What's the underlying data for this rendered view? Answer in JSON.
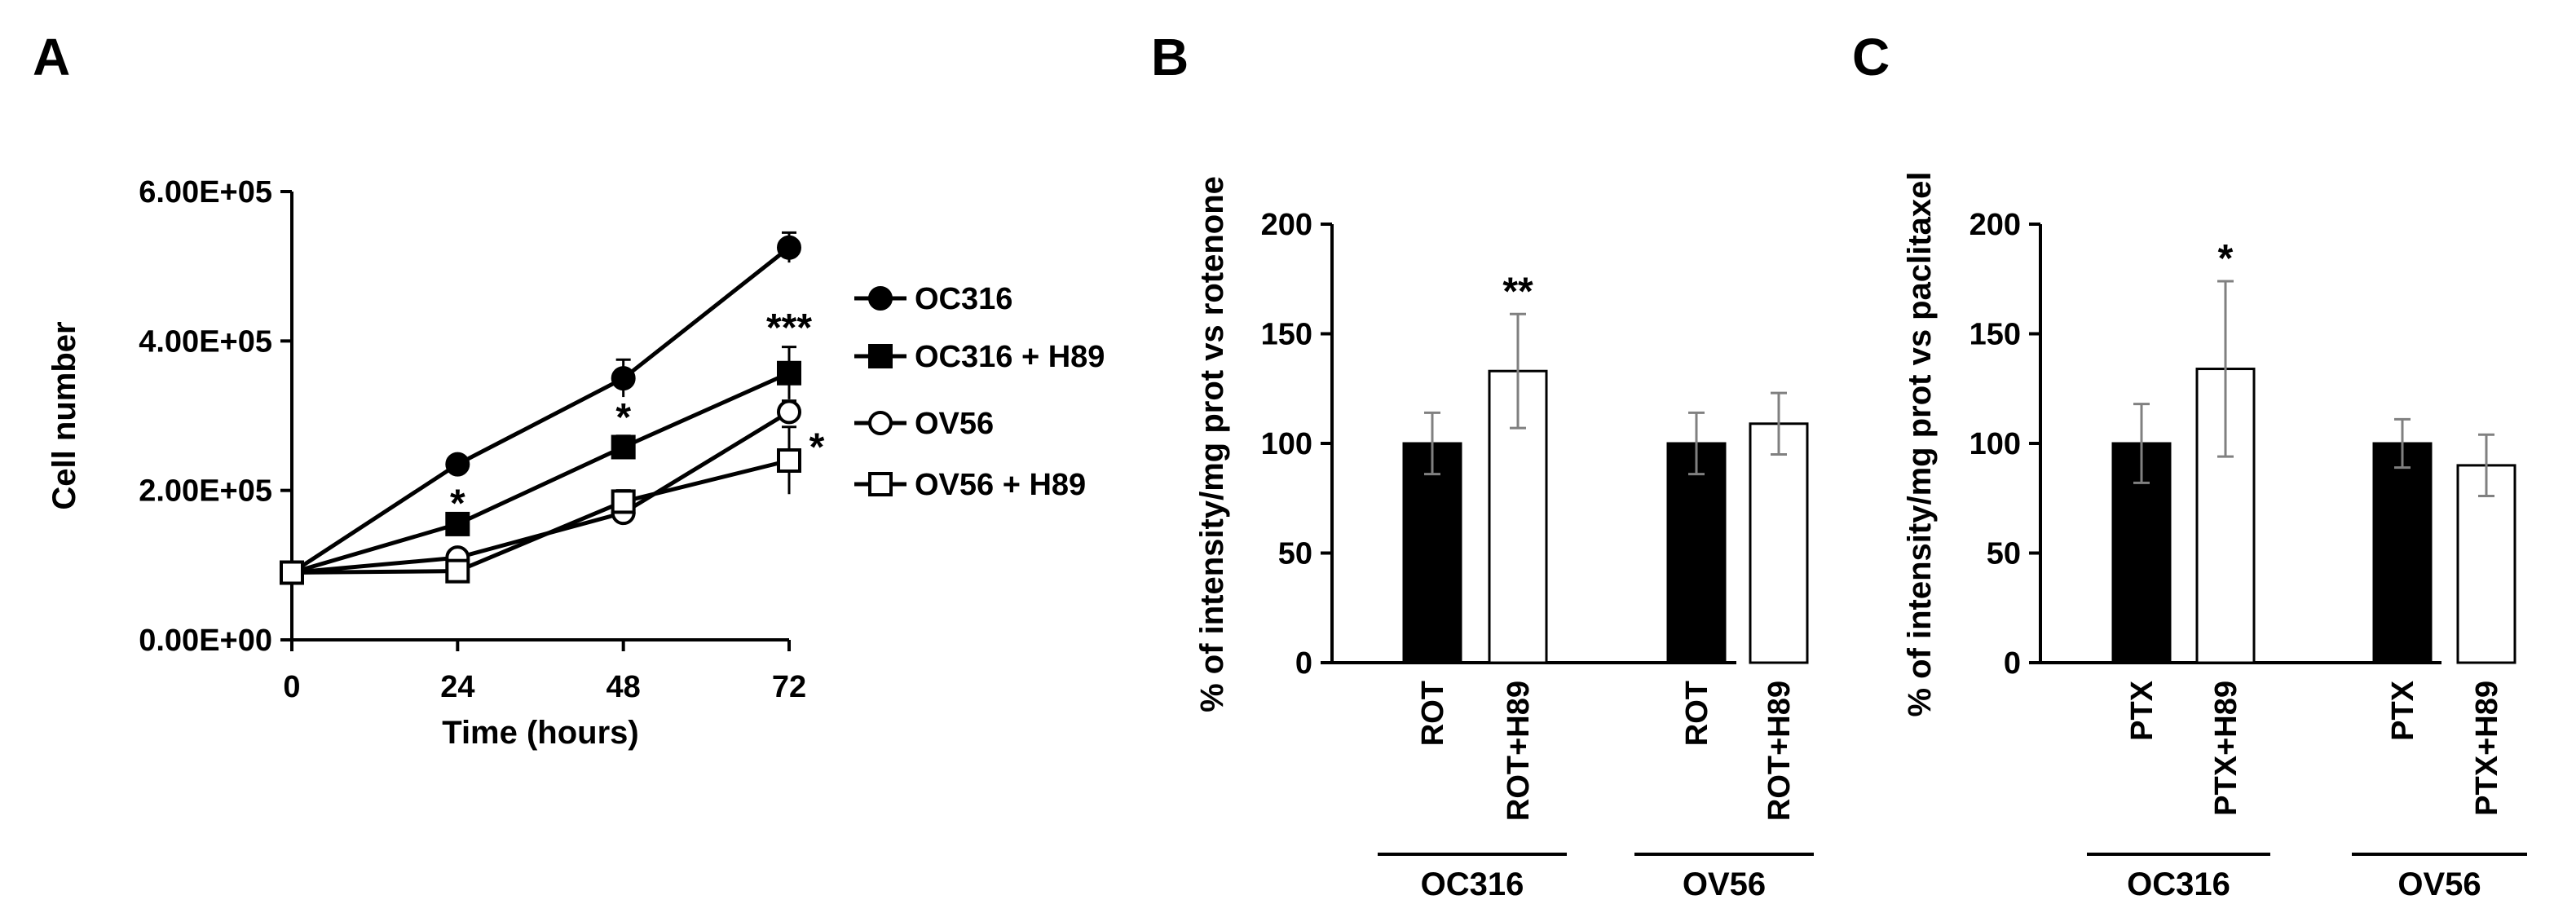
{
  "panels": {
    "A": "A",
    "B": "B",
    "C": "C"
  },
  "chart_data": [
    {
      "type": "line",
      "panel": "A",
      "xlabel": "Time (hours)",
      "ylabel": "Cell number",
      "x": [
        0,
        24,
        48,
        72
      ],
      "xticks": [
        "0",
        "24",
        "48",
        "72"
      ],
      "yticks": [
        "0.00E+00",
        "2.00E+05",
        "4.00E+05",
        "6.00E+05"
      ],
      "xlim": [
        0,
        72
      ],
      "ylim": [
        0,
        600000
      ],
      "legend_position": "right",
      "series": [
        {
          "name": "OC316",
          "marker": "filled-circle",
          "values": [
            90000,
            235000,
            350000,
            525000
          ],
          "errors": [
            5000,
            8000,
            25000,
            20000
          ]
        },
        {
          "name": "OC316 + H89",
          "marker": "filled-square",
          "values": [
            90000,
            155000,
            258000,
            357000
          ],
          "errors": [
            5000,
            6000,
            15000,
            35000
          ]
        },
        {
          "name": "OV56",
          "marker": "open-circle",
          "values": [
            90000,
            110000,
            170000,
            305000
          ],
          "errors": [
            5000,
            5000,
            10000,
            15000
          ]
        },
        {
          "name": "OV56 + H89",
          "marker": "open-square",
          "values": [
            90000,
            92000,
            185000,
            240000
          ],
          "errors": [
            5000,
            5000,
            15000,
            45000
          ]
        }
      ],
      "annotations": [
        {
          "text": "*",
          "x": 24,
          "y": 185000
        },
        {
          "text": "*",
          "x": 48,
          "y": 300000
        },
        {
          "text": "***",
          "x": 72,
          "y": 420000
        },
        {
          "text": "*",
          "x": 72,
          "y": 260000
        }
      ]
    },
    {
      "type": "bar",
      "panel": "B",
      "ylabel": "% of intensity/mg prot vs rotenone",
      "ylim": [
        0,
        200
      ],
      "yticks": [
        "0",
        "50",
        "100",
        "150",
        "200"
      ],
      "groups": [
        {
          "label": "OC316",
          "bars": [
            {
              "label": "ROT",
              "value": 100,
              "error": 14,
              "fill": "black"
            },
            {
              "label": "ROT+H89",
              "value": 133,
              "error": 26,
              "fill": "white",
              "sig": "**"
            }
          ]
        },
        {
          "label": "OV56",
          "bars": [
            {
              "label": "ROT",
              "value": 100,
              "error": 14,
              "fill": "black"
            },
            {
              "label": "ROT+H89",
              "value": 109,
              "error": 14,
              "fill": "white",
              "sig": ""
            }
          ]
        }
      ]
    },
    {
      "type": "bar",
      "panel": "C",
      "ylabel": "% of intensity/mg prot vs paclitaxel",
      "ylim": [
        0,
        200
      ],
      "yticks": [
        "0",
        "50",
        "100",
        "150",
        "200"
      ],
      "groups": [
        {
          "label": "OC316",
          "bars": [
            {
              "label": "PTX",
              "value": 100,
              "error": 18,
              "fill": "black"
            },
            {
              "label": "PTX+H89",
              "value": 134,
              "error": 40,
              "fill": "white",
              "sig": "*"
            }
          ]
        },
        {
          "label": "OV56",
          "bars": [
            {
              "label": "PTX",
              "value": 100,
              "error": 11,
              "fill": "black"
            },
            {
              "label": "PTX+H89",
              "value": 90,
              "error": 14,
              "fill": "white",
              "sig": ""
            }
          ]
        }
      ]
    }
  ],
  "colors": {
    "ink": "#000000",
    "paper": "#ffffff",
    "bar_error": "#808080"
  }
}
